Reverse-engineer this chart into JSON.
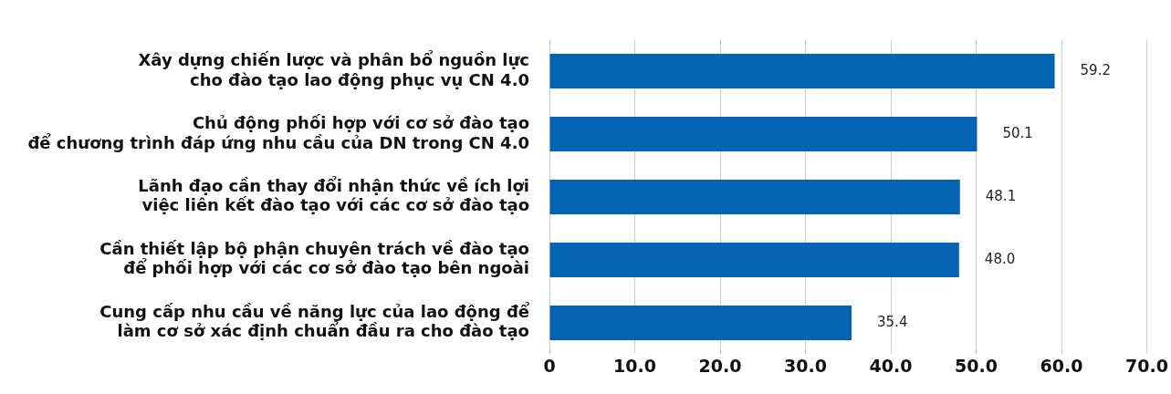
{
  "chart_data": {
    "type": "bar",
    "orientation": "horizontal",
    "categories": [
      "Xây dựng chiến lược và phân bổ nguồn lực\ncho đào tạo lao động phục vụ CN 4.0",
      "Chủ động phối hợp với cơ sở đào tạo\nđể chương trình đáp ứng nhu cầu của DN trong CN 4.0",
      "Lãnh đạo cần thay đổi nhận thức về ích lợi\nviệc liên kết đào tạo với các cơ sở đào tạo",
      "Cần thiết lập bộ phận chuyên trách về đào tạo\nđể phối hợp với các cơ sở đào tạo bên ngoài",
      "Cung cấp nhu cầu về năng lực của lao động để\nlàm cơ sở xác định chuẩn đầu ra cho đào tạo"
    ],
    "values": [
      59.2,
      50.1,
      48.1,
      48.0,
      35.4
    ],
    "color": "#0563b4",
    "value_labels": [
      "59.2",
      "50.1",
      "48.1",
      "48.0",
      "35.4"
    ],
    "xlim": [
      0,
      70
    ],
    "xticks": [
      0,
      {
        "value": 10,
        "label": "10.0"
      },
      {
        "value": 20,
        "label": "20.0"
      },
      {
        "value": 30,
        "label": "30.0"
      },
      {
        "value": 40,
        "label": "40.0"
      },
      {
        "value": 50,
        "label": "50.0"
      },
      {
        "value": 60,
        "label": "60.0"
      },
      {
        "value": 70,
        "label": "70.0"
      }
    ],
    "grid": "x",
    "legend": false
  }
}
